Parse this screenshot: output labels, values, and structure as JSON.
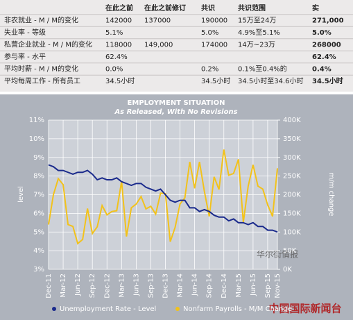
{
  "table": {
    "header": [
      null,
      "在此之前",
      "在此之前修订",
      "共识",
      "共识范围",
      "实"
    ],
    "rows": [
      [
        "非农就业 - M / M的变化",
        "142000",
        "137000",
        "190000",
        "15万至24万",
        "271,000"
      ],
      [
        "失业率 - 等级",
        "5.1%",
        null,
        "5.0%",
        "4.9%至5.1%",
        "5.0%"
      ],
      [
        "私营企业就业 - M / M的变化",
        "118000",
        "149,000",
        "174000",
        "14万~23万",
        "268000"
      ],
      [
        "参与率 - 水平",
        "62.4%",
        null,
        null,
        null,
        "62.4%"
      ],
      [
        "平均时薪 - M / M的变化",
        "0.0%",
        null,
        "0.2%",
        "0.1%至0.4%的",
        "0.4%"
      ],
      [
        "平均每周工作 - 所有员工",
        "34.5小时",
        null,
        "34.5小时",
        "34.5小时至34.6小时",
        "34.5小时"
      ]
    ]
  },
  "chart_data": {
    "type": "line",
    "title": "EMPLOYMENT SITUATION",
    "subtitle": "As Released, With No Revisions",
    "y_label": "level",
    "y2_label": "m/m change",
    "categories": [
      "Dec-11",
      null,
      null,
      "Mar-12",
      null,
      null,
      "Jun-12",
      null,
      null,
      "Sep-12",
      null,
      null,
      "Dec-12",
      null,
      null,
      "Mar-13",
      null,
      null,
      "Jun-13",
      null,
      null,
      "Sep-13",
      null,
      null,
      "Dec-13",
      null,
      null,
      "Mar-14",
      null,
      null,
      "Jun-14",
      null,
      null,
      "Sep-14",
      null,
      null,
      "Dec-14",
      null,
      null,
      "Mar-15",
      null,
      null,
      "Jun-15",
      null,
      null,
      "Sep-15",
      null,
      "Nov-15"
    ],
    "series": [
      {
        "name": "Unemployment Rate - Level",
        "color": "#1a2a8c",
        "values": [
          8.6,
          8.5,
          8.3,
          8.3,
          8.2,
          8.1,
          8.2,
          8.2,
          8.3,
          8.1,
          7.8,
          7.9,
          7.8,
          7.8,
          7.9,
          7.7,
          7.6,
          7.5,
          7.6,
          7.6,
          7.4,
          7.3,
          7.2,
          7.3,
          7.0,
          6.7,
          6.6,
          6.7,
          6.7,
          6.3,
          6.3,
          6.1,
          6.2,
          6.1,
          5.9,
          5.8,
          5.8,
          5.6,
          5.7,
          5.5,
          5.5,
          5.4,
          5.5,
          5.3,
          5.3,
          5.1,
          5.1,
          5.0
        ]
      },
      {
        "name": "Nonfarm Payrolls - M/M Change",
        "color": "#f2c21b",
        "axis": "y2",
        "values": [
          120,
          200,
          243,
          227,
          120,
          115,
          69,
          80,
          163,
          96,
          114,
          171,
          146,
          155,
          157,
          236,
          88,
          165,
          175,
          195,
          162,
          169,
          148,
          204,
          203,
          74,
          113,
          175,
          192,
          288,
          217,
          288,
          209,
          142,
          248,
          214,
          321,
          252,
          257,
          295,
          126,
          223,
          280,
          223,
          215,
          173,
          142,
          271
        ]
      }
    ],
    "ylim": [
      3,
      11
    ],
    "yticks": [
      {
        "value": 3,
        "label": "3%"
      },
      {
        "value": 4,
        "label": "4%"
      },
      {
        "value": 5,
        "label": "5%"
      },
      {
        "value": 6,
        "label": "6%"
      },
      {
        "value": 7,
        "label": "7%"
      },
      {
        "value": 8,
        "label": "8%"
      },
      {
        "value": 9,
        "label": "9%"
      },
      {
        "value": 10,
        "label": "10%"
      },
      {
        "value": 11,
        "label": "11%"
      }
    ],
    "y2lim": [
      0,
      400
    ],
    "y2ticks": [
      {
        "value": 0,
        "label": "0K"
      },
      {
        "value": 50,
        "label": "50K"
      },
      {
        "value": 100,
        "label": "100K"
      },
      {
        "value": 150,
        "label": "150K"
      },
      {
        "value": 200,
        "label": "200K"
      },
      {
        "value": 250,
        "label": "250K"
      },
      {
        "value": 300,
        "label": "300K"
      },
      {
        "value": 350,
        "label": "350K"
      },
      {
        "value": 400,
        "label": "400K"
      }
    ],
    "grid": true,
    "watermarks": [
      "华尔街情报",
      "中国国际新闻台"
    ]
  }
}
